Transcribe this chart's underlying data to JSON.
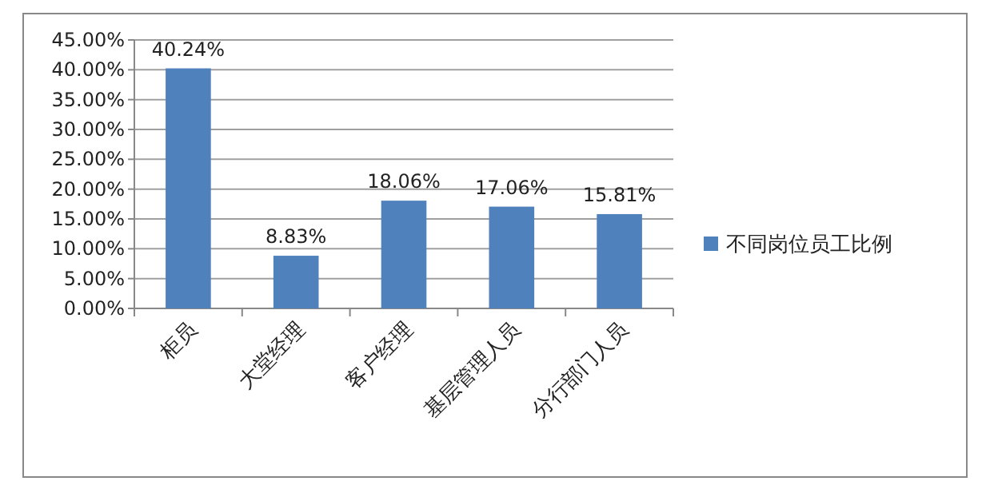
{
  "chart_data": {
    "type": "bar",
    "categories": [
      "柜员",
      "大堂经理",
      "客户经理",
      "基层管理人员",
      "分行部门人员"
    ],
    "series": [
      {
        "name": "不同岗位员工比例",
        "color": "#4f81bd",
        "values": [
          40.24,
          8.83,
          18.06,
          17.06,
          15.81
        ],
        "value_labels": [
          "40.24%",
          "8.83%",
          "18.06%",
          "17.06%",
          "15.81%"
        ]
      }
    ],
    "ylim": [
      0,
      45
    ],
    "yticks": [
      {
        "value": 0,
        "label": "0.00%"
      },
      {
        "value": 5,
        "label": "5.00%"
      },
      {
        "value": 10,
        "label": "10.00%"
      },
      {
        "value": 15,
        "label": "15.00%"
      },
      {
        "value": 20,
        "label": "20.00%"
      },
      {
        "value": 25,
        "label": "25.00%"
      },
      {
        "value": 30,
        "label": "30.00%"
      },
      {
        "value": 35,
        "label": "35.00%"
      },
      {
        "value": 40,
        "label": "40.00%"
      },
      {
        "value": 45,
        "label": "45.00%"
      }
    ],
    "grid": "y",
    "legend": "right"
  }
}
